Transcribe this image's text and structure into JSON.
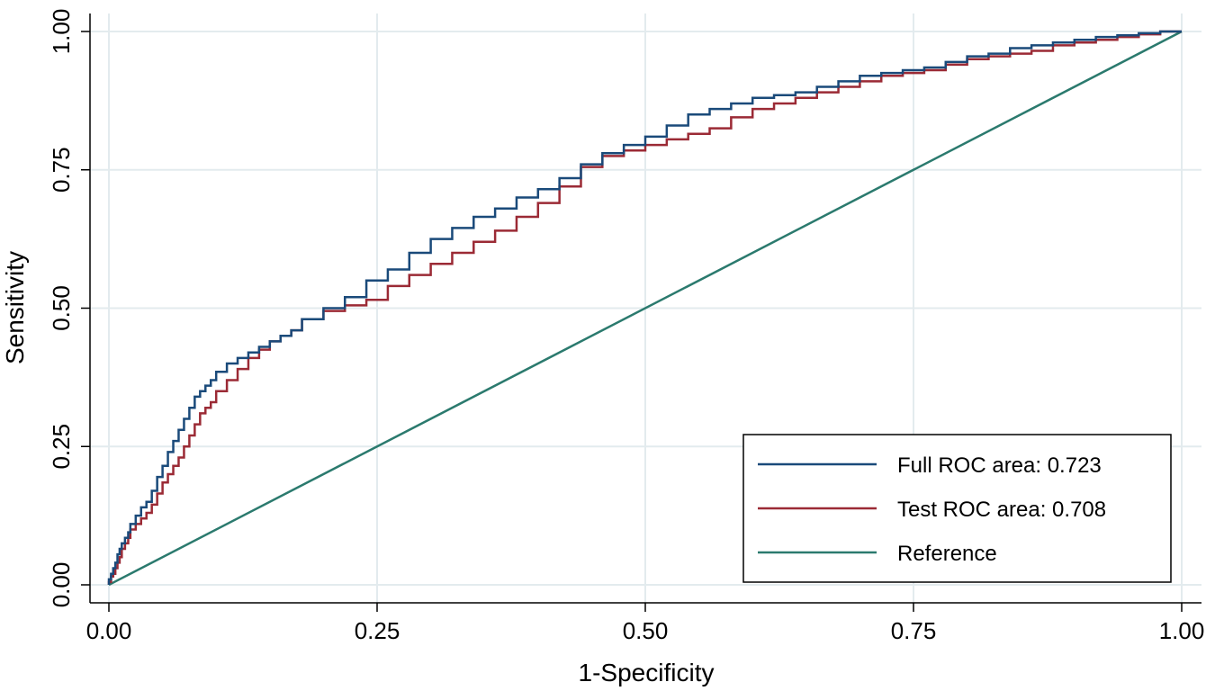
{
  "chart_data": {
    "type": "line",
    "title": "",
    "xlabel": "1-Specificity",
    "ylabel": "Sensitivity",
    "xlim": [
      0,
      1
    ],
    "ylim": [
      0,
      1
    ],
    "xticks": [
      "0.00",
      "0.25",
      "0.50",
      "0.75",
      "1.00"
    ],
    "yticks": [
      "0.00",
      "0.25",
      "0.50",
      "0.75",
      "1.00"
    ],
    "tick_values": [
      0,
      0.25,
      0.5,
      0.75,
      1.0
    ],
    "grid": true,
    "legend_position": "bottom-right",
    "series": [
      {
        "name": "Full ROC area: 0.723",
        "color": "#1a4a7a",
        "x": [
          0,
          0.002,
          0.004,
          0.006,
          0.008,
          0.01,
          0.012,
          0.015,
          0.018,
          0.02,
          0.025,
          0.03,
          0.035,
          0.04,
          0.045,
          0.05,
          0.055,
          0.06,
          0.065,
          0.07,
          0.075,
          0.08,
          0.085,
          0.09,
          0.095,
          0.1,
          0.11,
          0.12,
          0.13,
          0.14,
          0.15,
          0.16,
          0.17,
          0.18,
          0.2,
          0.22,
          0.24,
          0.26,
          0.28,
          0.3,
          0.32,
          0.34,
          0.36,
          0.38,
          0.4,
          0.42,
          0.44,
          0.46,
          0.48,
          0.5,
          0.52,
          0.54,
          0.56,
          0.58,
          0.6,
          0.62,
          0.64,
          0.66,
          0.68,
          0.7,
          0.72,
          0.74,
          0.76,
          0.78,
          0.8,
          0.82,
          0.84,
          0.86,
          0.88,
          0.9,
          0.92,
          0.94,
          0.96,
          0.98,
          1.0
        ],
        "y": [
          0,
          0.01,
          0.02,
          0.03,
          0.04,
          0.055,
          0.065,
          0.075,
          0.085,
          0.095,
          0.11,
          0.125,
          0.14,
          0.15,
          0.17,
          0.195,
          0.215,
          0.24,
          0.26,
          0.28,
          0.3,
          0.32,
          0.34,
          0.35,
          0.36,
          0.37,
          0.385,
          0.4,
          0.41,
          0.42,
          0.43,
          0.44,
          0.45,
          0.46,
          0.48,
          0.5,
          0.52,
          0.55,
          0.57,
          0.6,
          0.625,
          0.645,
          0.665,
          0.68,
          0.7,
          0.715,
          0.735,
          0.76,
          0.78,
          0.795,
          0.81,
          0.83,
          0.85,
          0.86,
          0.87,
          0.88,
          0.885,
          0.89,
          0.9,
          0.91,
          0.92,
          0.925,
          0.93,
          0.935,
          0.945,
          0.955,
          0.96,
          0.97,
          0.975,
          0.98,
          0.985,
          0.99,
          0.993,
          0.997,
          1.0
        ]
      },
      {
        "name": "Test ROC area: 0.708",
        "color": "#9b2a35",
        "x": [
          0,
          0.002,
          0.004,
          0.006,
          0.008,
          0.01,
          0.012,
          0.015,
          0.018,
          0.02,
          0.025,
          0.03,
          0.035,
          0.04,
          0.045,
          0.05,
          0.055,
          0.06,
          0.065,
          0.07,
          0.075,
          0.08,
          0.085,
          0.09,
          0.095,
          0.1,
          0.11,
          0.12,
          0.13,
          0.14,
          0.15,
          0.16,
          0.17,
          0.18,
          0.2,
          0.22,
          0.24,
          0.26,
          0.28,
          0.3,
          0.32,
          0.34,
          0.36,
          0.38,
          0.4,
          0.42,
          0.44,
          0.46,
          0.48,
          0.5,
          0.52,
          0.54,
          0.56,
          0.58,
          0.6,
          0.62,
          0.64,
          0.66,
          0.68,
          0.7,
          0.72,
          0.74,
          0.76,
          0.78,
          0.8,
          0.82,
          0.84,
          0.86,
          0.88,
          0.9,
          0.92,
          0.94,
          0.96,
          0.98,
          1.0
        ],
        "y": [
          0,
          0.005,
          0.015,
          0.02,
          0.03,
          0.04,
          0.05,
          0.065,
          0.075,
          0.085,
          0.1,
          0.11,
          0.12,
          0.13,
          0.145,
          0.165,
          0.185,
          0.2,
          0.215,
          0.23,
          0.25,
          0.27,
          0.29,
          0.31,
          0.32,
          0.33,
          0.35,
          0.37,
          0.39,
          0.41,
          0.425,
          0.44,
          0.45,
          0.46,
          0.48,
          0.495,
          0.505,
          0.515,
          0.54,
          0.56,
          0.58,
          0.6,
          0.62,
          0.64,
          0.665,
          0.69,
          0.72,
          0.755,
          0.775,
          0.785,
          0.795,
          0.805,
          0.815,
          0.825,
          0.845,
          0.86,
          0.87,
          0.88,
          0.89,
          0.9,
          0.91,
          0.92,
          0.925,
          0.93,
          0.94,
          0.95,
          0.955,
          0.96,
          0.965,
          0.975,
          0.98,
          0.985,
          0.99,
          0.995,
          1.0
        ]
      },
      {
        "name": "Reference",
        "color": "#2b7a6e",
        "x": [
          0,
          1
        ],
        "y": [
          0,
          1
        ]
      }
    ]
  }
}
